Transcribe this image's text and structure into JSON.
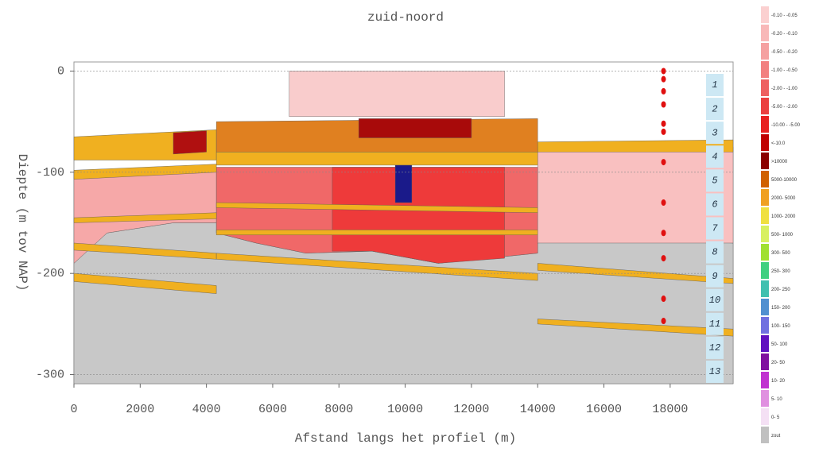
{
  "chart_data": {
    "type": "section",
    "title": "zuid-noord",
    "x_label": "Afstand langs het profiel (m)",
    "y_label": "Diepte (m tov NAP)",
    "xlim": [
      0,
      19900
    ],
    "ylim": [
      -309,
      9
    ],
    "xticks": [
      0,
      2000,
      4000,
      6000,
      8000,
      10000,
      12000,
      14000,
      16000,
      18000
    ],
    "yticks": [
      0,
      -100,
      -200,
      -300
    ],
    "regions": [
      {
        "color": "#c8c8c8",
        "x": [
          0,
          1000,
          3000,
          4300,
          4300,
          5500,
          7000,
          9000,
          11000,
          14000,
          14000,
          15500,
          16500,
          19900,
          19900,
          0
        ],
        "y": [
          -190,
          -160,
          -150,
          -150,
          -160,
          -170,
          -180,
          -178,
          -190,
          -180,
          -170,
          -160,
          -165,
          -170,
          -309,
          -309
        ]
      },
      {
        "color": "#f6a8a8",
        "x": [
          0,
          4300,
          4300,
          3000,
          1000,
          0
        ],
        "y": [
          -100,
          -95,
          -150,
          -150,
          -160,
          -190
        ]
      },
      {
        "color": "#f06868",
        "x": [
          4300,
          14000,
          14000,
          11000,
          9000,
          7000,
          5500,
          4300
        ],
        "y": [
          -95,
          -95,
          -180,
          -190,
          -178,
          -180,
          -170,
          -160
        ]
      },
      {
        "color": "#ee3a3a",
        "x": [
          7800,
          13000,
          13000,
          11000,
          9000,
          7800
        ],
        "y": [
          -95,
          -95,
          -185,
          -190,
          -178,
          -178
        ]
      },
      {
        "color": "#1a1a8a",
        "x": [
          9700,
          10200,
          10200,
          9700
        ],
        "y": [
          -93,
          -93,
          -130,
          -130
        ]
      },
      {
        "color": "#f9cccc",
        "x": [
          6500,
          13000,
          13000,
          6500
        ],
        "y": [
          0,
          0,
          -45,
          -45
        ]
      },
      {
        "color": "#f9c0c0",
        "x": [
          14000,
          19900,
          19900,
          14000
        ],
        "y": [
          -75,
          -75,
          -170,
          -170
        ]
      },
      {
        "color": "#f0b020",
        "x": [
          0,
          4300,
          4300,
          0
        ],
        "y": [
          -65,
          -58,
          -88,
          -88
        ]
      },
      {
        "color": "#b01010",
        "x": [
          3000,
          4000,
          4000,
          3000
        ],
        "y": [
          -61,
          -59,
          -80,
          -82
        ]
      },
      {
        "color": "#e08020",
        "x": [
          4300,
          14000,
          14000,
          4300
        ],
        "y": [
          -50,
          -47,
          -80,
          -80
        ]
      },
      {
        "color": "#a80a0a",
        "x": [
          8600,
          12000,
          12000,
          8600
        ],
        "y": [
          -47,
          -47,
          -66,
          -66
        ]
      },
      {
        "color": "#f0b020",
        "x": [
          4300,
          14000,
          14000,
          4300
        ],
        "y": [
          -80,
          -80,
          -93,
          -93
        ]
      },
      {
        "color": "#f0b020",
        "x": [
          14000,
          19900,
          19900,
          14000
        ],
        "y": [
          -70,
          -68,
          -80,
          -80
        ]
      },
      {
        "color": "#f0b020",
        "x": [
          0,
          4300,
          4300,
          0
        ],
        "y": [
          -98,
          -92,
          -100,
          -107
        ]
      },
      {
        "color": "#f0b020",
        "x": [
          0,
          4300,
          4300,
          0
        ],
        "y": [
          -145,
          -140,
          -146,
          -150
        ]
      },
      {
        "color": "#f0b020",
        "x": [
          0,
          4300,
          4300,
          0
        ],
        "y": [
          -170,
          -180,
          -186,
          -177
        ]
      },
      {
        "color": "#f0b020",
        "x": [
          0,
          4300,
          4300,
          0
        ],
        "y": [
          -200,
          -212,
          -220,
          -208
        ]
      },
      {
        "color": "#f0b020",
        "x": [
          4300,
          14000,
          14000,
          4300
        ],
        "y": [
          -130,
          -135,
          -140,
          -135
        ]
      },
      {
        "color": "#f0b020",
        "x": [
          4300,
          14000,
          14000,
          4300
        ],
        "y": [
          -157,
          -157,
          -162,
          -162
        ]
      },
      {
        "color": "#f0b020",
        "x": [
          4300,
          14000,
          14000,
          4300
        ],
        "y": [
          -180,
          -200,
          -207,
          -186
        ]
      },
      {
        "color": "#f0b020",
        "x": [
          14000,
          19900,
          19900,
          14000
        ],
        "y": [
          -190,
          -205,
          -210,
          -197
        ]
      },
      {
        "color": "#f0b020",
        "x": [
          14000,
          19900,
          19900,
          14000
        ],
        "y": [
          -245,
          -255,
          -262,
          -250
        ]
      }
    ],
    "points": {
      "color": "#e01010",
      "x": [
        17800,
        17800,
        17800,
        17800,
        17800,
        17800,
        17800,
        17800,
        17800,
        17800,
        17800,
        17800
      ],
      "y": [
        0,
        -8,
        -20,
        -33,
        -52,
        -60,
        -90,
        -130,
        -160,
        -185,
        -225,
        -247
      ]
    },
    "layer_labels": [
      "1",
      "2",
      "3",
      "4",
      "5",
      "6",
      "7",
      "8",
      "9",
      "10",
      "11",
      "12",
      "13"
    ],
    "legend": [
      {
        "label": "-0.10 - -0.05",
        "color": "#fbd0d0"
      },
      {
        "label": "-0.20 - -0.10",
        "color": "#f8b8b8"
      },
      {
        "label": "-0.50 - -0.20",
        "color": "#f5a0a0"
      },
      {
        "label": "-1.00 - -0.50",
        "color": "#f28080"
      },
      {
        "label": "-2.00 - -1.00",
        "color": "#ee6060"
      },
      {
        "label": "-5.00 - -2.00",
        "color": "#eb4040"
      },
      {
        "label": "-10.00 - -5.00",
        "color": "#e82020"
      },
      {
        "label": "<-10.0",
        "color": "#c00000"
      },
      {
        "label": ">10000",
        "color": "#8b0000"
      },
      {
        "label": "5000-10000",
        "color": "#d06000"
      },
      {
        "label": "2000- 5000",
        "color": "#f0a020"
      },
      {
        "label": "1000- 2000",
        "color": "#f0e040"
      },
      {
        "label": "500- 1000",
        "color": "#d8f060"
      },
      {
        "label": "300- 500",
        "color": "#a0e030"
      },
      {
        "label": "250- 300",
        "color": "#40d080"
      },
      {
        "label": "200- 250",
        "color": "#40c0b0"
      },
      {
        "label": "150- 200",
        "color": "#5090d0"
      },
      {
        "label": "100- 150",
        "color": "#7070e0"
      },
      {
        "label": "50- 100",
        "color": "#6010c0"
      },
      {
        "label": "20- 50",
        "color": "#8010a0"
      },
      {
        "label": "10- 20",
        "color": "#c030d0"
      },
      {
        "label": "5- 10",
        "color": "#e090e0"
      },
      {
        "label": "0- 5",
        "color": "#f4e0f4"
      },
      {
        "label": "zout",
        "color": "#c0c0c0"
      }
    ]
  }
}
